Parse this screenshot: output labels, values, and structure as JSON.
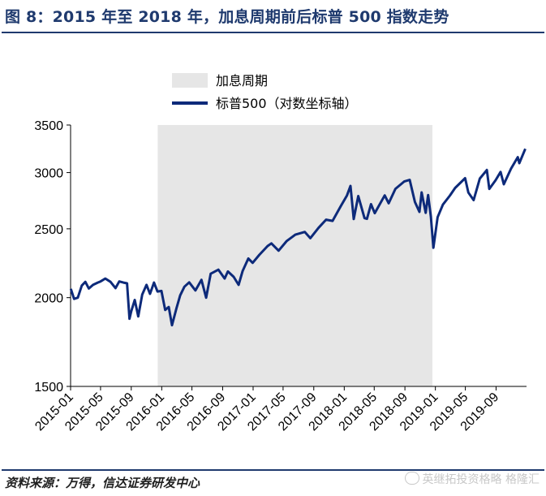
{
  "header": {
    "title": "图 8：2015 年至 2018 年，加息周期前后标普 500 指数走势"
  },
  "footer": {
    "source": "资料来源：万得，信达证券研发中心",
    "watermark": "英继拓投资格略 格隆汇"
  },
  "chart_data": {
    "type": "line",
    "title": "",
    "xlabel": "",
    "ylabel": "",
    "ylim": [
      1500,
      3500
    ],
    "yticks": [
      1500,
      2000,
      2500,
      3000,
      3500
    ],
    "x_range": [
      "2015-01",
      "2019-12"
    ],
    "xticks": [
      "2015-01",
      "2015-05",
      "2015-09",
      "2016-01",
      "2016-05",
      "2016-09",
      "2017-01",
      "2017-05",
      "2017-09",
      "2018-01",
      "2018-05",
      "2018-09",
      "2019-01",
      "2019-05",
      "2019-09"
    ],
    "grid": false,
    "legend_position": "top-left",
    "legend": [
      {
        "label": "加息周期",
        "kind": "shaded-area",
        "color": "#e6e6e6"
      },
      {
        "label": "标普500（对数坐标轴）",
        "kind": "line",
        "color": "#0d2a7a"
      }
    ],
    "shaded_periods": [
      {
        "name": "加息周期",
        "start": "2015-12-16",
        "end": "2018-12-20"
      }
    ],
    "series": [
      {
        "name": "标普500（对数坐标轴）",
        "color": "#0d2a7a",
        "points": [
          [
            "2015-01-02",
            2058
          ],
          [
            "2015-01-15",
            1992
          ],
          [
            "2015-01-30",
            2000
          ],
          [
            "2015-02-15",
            2080
          ],
          [
            "2015-03-01",
            2105
          ],
          [
            "2015-03-15",
            2060
          ],
          [
            "2015-04-01",
            2085
          ],
          [
            "2015-04-20",
            2100
          ],
          [
            "2015-05-01",
            2108
          ],
          [
            "2015-05-20",
            2128
          ],
          [
            "2015-06-10",
            2105
          ],
          [
            "2015-06-30",
            2063
          ],
          [
            "2015-07-15",
            2108
          ],
          [
            "2015-08-01",
            2100
          ],
          [
            "2015-08-15",
            2095
          ],
          [
            "2015-08-25",
            1868
          ],
          [
            "2015-09-01",
            1914
          ],
          [
            "2015-09-15",
            1985
          ],
          [
            "2015-09-29",
            1882
          ],
          [
            "2015-10-15",
            2020
          ],
          [
            "2015-11-01",
            2085
          ],
          [
            "2015-11-15",
            2025
          ],
          [
            "2015-12-01",
            2100
          ],
          [
            "2015-12-15",
            2040
          ],
          [
            "2015-12-31",
            2044
          ],
          [
            "2016-01-15",
            1922
          ],
          [
            "2016-01-29",
            1940
          ],
          [
            "2016-02-11",
            1829
          ],
          [
            "2016-02-29",
            1932
          ],
          [
            "2016-03-15",
            2015
          ],
          [
            "2016-04-01",
            2072
          ],
          [
            "2016-04-20",
            2102
          ],
          [
            "2016-05-15",
            2047
          ],
          [
            "2016-06-08",
            2119
          ],
          [
            "2016-06-27",
            2000
          ],
          [
            "2016-07-15",
            2161
          ],
          [
            "2016-08-15",
            2190
          ],
          [
            "2016-09-09",
            2128
          ],
          [
            "2016-09-22",
            2177
          ],
          [
            "2016-10-15",
            2140
          ],
          [
            "2016-11-04",
            2085
          ],
          [
            "2016-11-20",
            2181
          ],
          [
            "2016-12-13",
            2271
          ],
          [
            "2016-12-30",
            2239
          ],
          [
            "2017-01-26",
            2298
          ],
          [
            "2017-02-28",
            2364
          ],
          [
            "2017-03-15",
            2385
          ],
          [
            "2017-04-13",
            2329
          ],
          [
            "2017-05-15",
            2402
          ],
          [
            "2017-06-19",
            2453
          ],
          [
            "2017-07-27",
            2475
          ],
          [
            "2017-08-18",
            2425
          ],
          [
            "2017-09-20",
            2508
          ],
          [
            "2017-10-20",
            2575
          ],
          [
            "2017-11-15",
            2565
          ],
          [
            "2017-12-18",
            2690
          ],
          [
            "2018-01-12",
            2786
          ],
          [
            "2018-01-26",
            2873
          ],
          [
            "2018-02-08",
            2581
          ],
          [
            "2018-02-26",
            2780
          ],
          [
            "2018-03-23",
            2588
          ],
          [
            "2018-04-02",
            2582
          ],
          [
            "2018-04-18",
            2708
          ],
          [
            "2018-05-03",
            2630
          ],
          [
            "2018-06-12",
            2786
          ],
          [
            "2018-06-28",
            2716
          ],
          [
            "2018-07-25",
            2846
          ],
          [
            "2018-08-29",
            2914
          ],
          [
            "2018-09-20",
            2930
          ],
          [
            "2018-10-11",
            2728
          ],
          [
            "2018-10-29",
            2641
          ],
          [
            "2018-11-07",
            2813
          ],
          [
            "2018-11-23",
            2633
          ],
          [
            "2018-12-03",
            2790
          ],
          [
            "2018-12-14",
            2600
          ],
          [
            "2018-12-24",
            2351
          ],
          [
            "2019-01-10",
            2596
          ],
          [
            "2019-01-31",
            2704
          ],
          [
            "2019-02-28",
            2784
          ],
          [
            "2019-03-21",
            2854
          ],
          [
            "2019-04-30",
            2946
          ],
          [
            "2019-05-13",
            2812
          ],
          [
            "2019-06-03",
            2744
          ],
          [
            "2019-06-28",
            2942
          ],
          [
            "2019-07-26",
            3025
          ],
          [
            "2019-08-05",
            2845
          ],
          [
            "2019-08-30",
            2926
          ],
          [
            "2019-09-19",
            3006
          ],
          [
            "2019-10-02",
            2888
          ],
          [
            "2019-10-31",
            3038
          ],
          [
            "2019-11-27",
            3154
          ],
          [
            "2019-12-03",
            3093
          ],
          [
            "2019-12-27",
            3240
          ]
        ]
      }
    ]
  }
}
